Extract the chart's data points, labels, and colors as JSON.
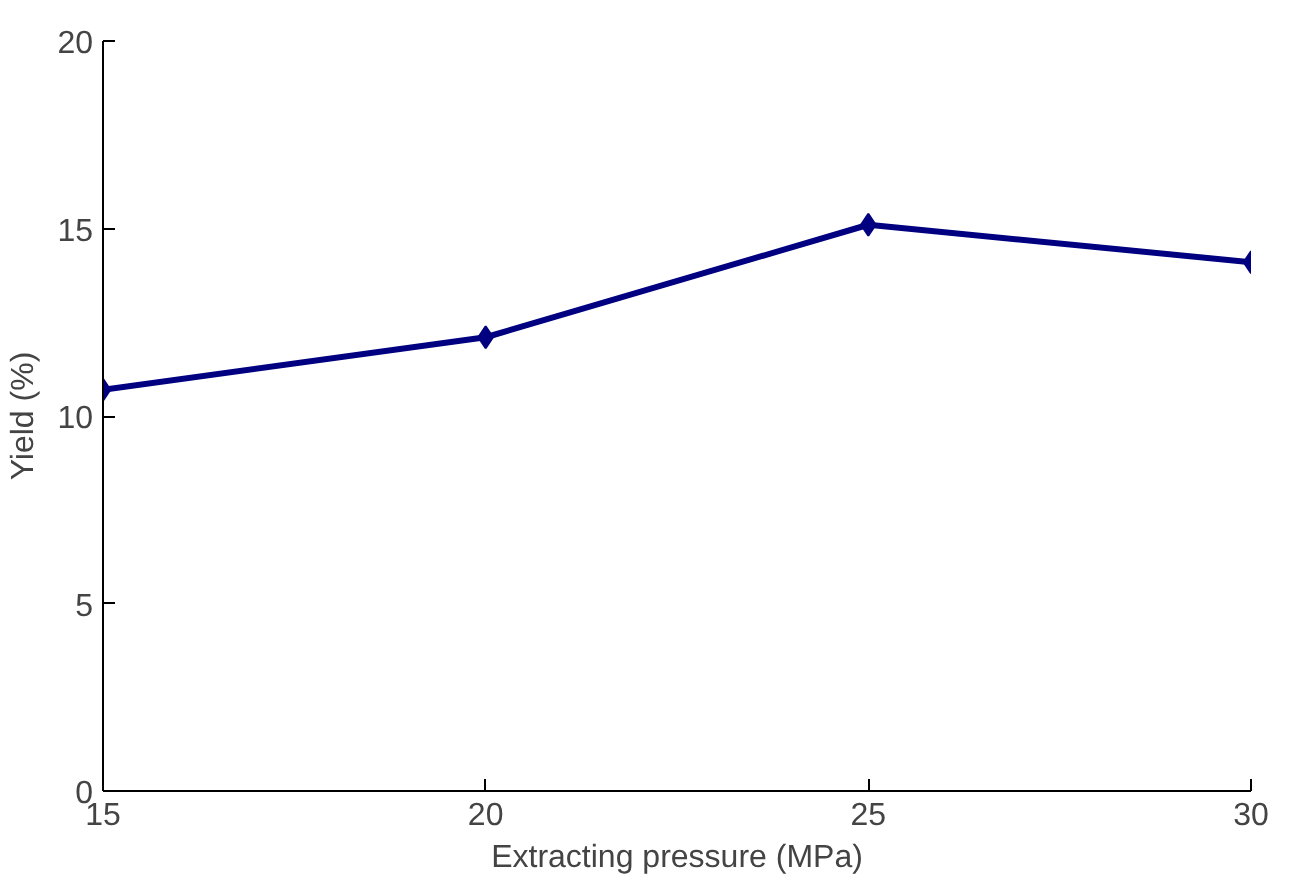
{
  "chart_data": {
    "type": "line",
    "xlabel": "Extracting pressure (MPa)",
    "ylabel": "Yield (%)",
    "x": [
      15,
      20,
      25,
      30
    ],
    "series": [
      {
        "color": "#000080",
        "values": [
          10.7,
          12.1,
          15.1,
          14.1
        ]
      }
    ],
    "xlim": [
      15,
      30
    ],
    "xticks": [
      15,
      20,
      25,
      30
    ],
    "ylim": [
      0,
      20
    ],
    "yticks": [
      0,
      5,
      10,
      15,
      20
    ],
    "grid": false,
    "marker": "diamond",
    "line_style": "solid"
  }
}
